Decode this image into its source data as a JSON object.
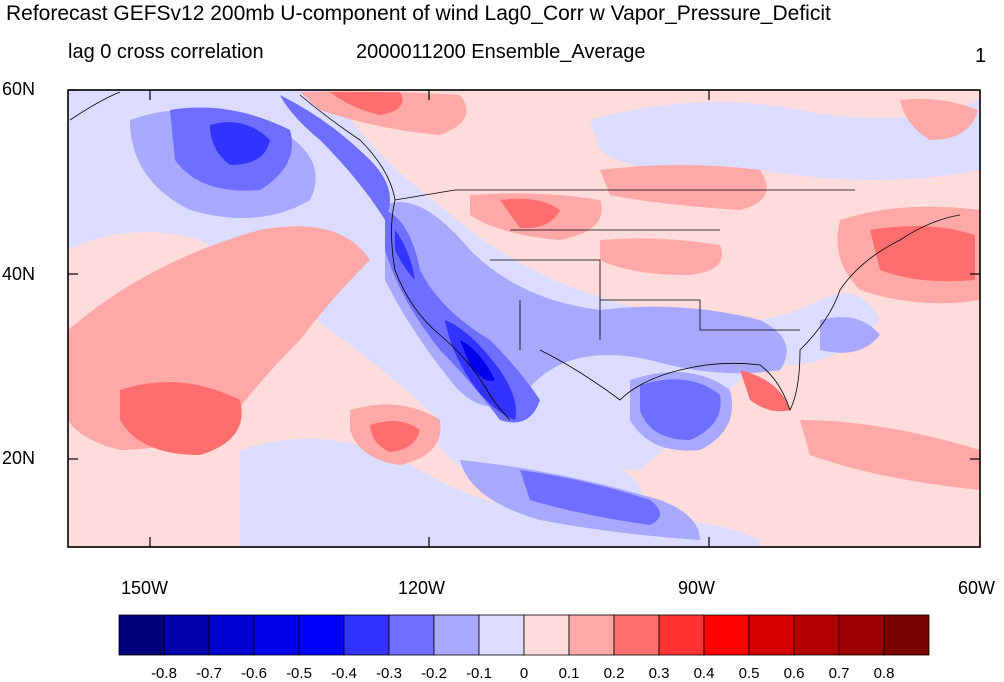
{
  "title": "Reforecast GEFSv12 200mb U-component of wind Lag0_Corr w Vapor_Pressure_Deficit",
  "subtitle_left": "lag 0 cross correlation",
  "subtitle_center": "2000011200 Ensemble_Average",
  "subtitle_right": "1",
  "map": {
    "lat_labels": [
      "60N",
      "40N",
      "20N"
    ],
    "lon_labels": [
      "150W",
      "120W",
      "90W",
      "60W"
    ],
    "extent": {
      "lon_min": -159,
      "lon_max": -60,
      "lat_min": 10,
      "lat_max": 60
    }
  },
  "colorbar": {
    "labels": [
      "-0.8",
      "-0.7",
      "-0.6",
      "-0.5",
      "-0.4",
      "-0.3",
      "-0.2",
      "-0.1",
      "0",
      "0.1",
      "0.2",
      "0.3",
      "0.4",
      "0.5",
      "0.6",
      "0.7",
      "0.8"
    ],
    "colors": [
      "#00007a",
      "#0000a8",
      "#0000d0",
      "#0000ea",
      "#0000ff",
      "#3333ff",
      "#6e6eff",
      "#a8a8ff",
      "#dcdcff",
      "#ffdcdc",
      "#ffa8a8",
      "#ff6e6e",
      "#ff3333",
      "#ff0000",
      "#d60000",
      "#b20000",
      "#9c0000",
      "#7a0000"
    ]
  }
}
